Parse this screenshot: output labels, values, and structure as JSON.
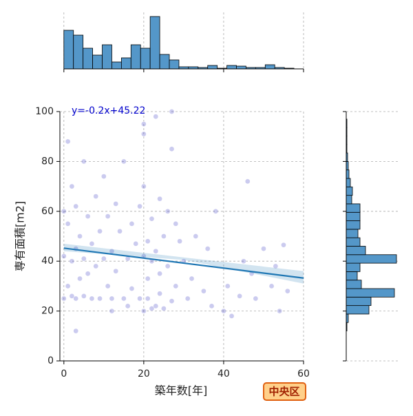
{
  "chart_data": {
    "type": "scatter",
    "x_label": "築年数[年]",
    "y_label": "専有面積[m2]",
    "annotation": "y=-0.2x+45.22",
    "badge": "中央区",
    "xlim": [
      -1,
      60
    ],
    "ylim": [
      0,
      100
    ],
    "xticks": [
      0,
      20,
      40,
      60
    ],
    "yticks": [
      0,
      20,
      40,
      60,
      80,
      100
    ],
    "grid": true,
    "color": "#3030c0",
    "x": [
      0,
      0,
      0,
      1,
      1,
      1,
      2,
      2,
      2,
      3,
      3,
      3,
      4,
      4,
      5,
      5,
      5,
      6,
      6,
      7,
      7,
      8,
      8,
      9,
      9,
      10,
      10,
      11,
      11,
      12,
      12,
      13,
      13,
      14,
      15,
      15,
      16,
      17,
      17,
      18,
      19,
      19,
      20,
      20,
      20,
      20,
      21,
      21,
      21,
      22,
      22,
      22,
      23,
      23,
      23,
      24,
      24,
      24,
      25,
      25,
      26,
      26,
      27,
      27,
      28,
      28,
      29,
      30,
      31,
      32,
      33,
      35,
      36,
      37,
      38,
      40,
      41,
      42,
      44,
      45,
      46,
      47,
      48,
      50,
      52,
      53,
      54,
      55,
      56,
      3,
      12,
      20,
      27,
      16
    ],
    "y": [
      25,
      42,
      60,
      30,
      55,
      88,
      26,
      40,
      70,
      45,
      25,
      62,
      33,
      50,
      26,
      41,
      80,
      58,
      35,
      25,
      47,
      66,
      38,
      25,
      52,
      41,
      74,
      30,
      58,
      25,
      44,
      63,
      36,
      52,
      25,
      80,
      41,
      29,
      55,
      47,
      25,
      62,
      95,
      20,
      42,
      70,
      25,
      48,
      33,
      21,
      57,
      40,
      22,
      98,
      44,
      27,
      65,
      35,
      21,
      50,
      38,
      60,
      24,
      85,
      30,
      55,
      48,
      40,
      25,
      33,
      50,
      28,
      45,
      22,
      60,
      20,
      30,
      18,
      26,
      40,
      72,
      35,
      25,
      45,
      30,
      38,
      20,
      46.5,
      28,
      12,
      20,
      91,
      100,
      22
    ],
    "regression": {
      "slope": -0.2,
      "intercept": 45.22,
      "color": "#1f77b4",
      "band": {
        "x": [
          0,
          30,
          60
        ],
        "lower": [
          44,
          40.5,
          31
        ],
        "upper": [
          47,
          41.5,
          36
        ]
      }
    },
    "top_hist": {
      "color": "#5497c9",
      "bins": [
        0,
        2.4,
        4.8,
        7.2,
        9.6,
        12,
        14.4,
        16.8,
        19.2,
        21.6,
        24,
        26.4,
        28.8,
        31.2,
        33.6,
        36,
        38.4,
        40.8,
        43.2,
        45.6,
        48,
        50.4,
        52.8,
        55.2,
        57.6,
        60
      ],
      "counts": [
        56,
        49,
        30,
        20,
        35,
        10,
        16,
        35,
        30,
        76,
        21,
        13,
        3,
        3,
        2,
        5,
        1,
        5,
        4,
        2,
        2,
        6,
        2,
        1,
        0
      ]
    },
    "right_hist": {
      "color": "#5497c9",
      "bins": [
        12,
        15.4,
        18.8,
        22.2,
        25.6,
        29,
        32.4,
        35.8,
        39.2,
        42.6,
        46,
        49.4,
        52.8,
        56.2,
        59.6,
        63,
        66.4,
        69.8,
        73.2,
        76.6,
        80,
        83.4,
        86.8,
        90.2,
        93.6,
        97
      ],
      "counts": [
        1,
        3,
        33,
        36,
        70,
        22,
        16,
        20,
        73,
        28,
        20,
        17,
        20,
        20,
        20,
        8,
        9,
        6,
        4,
        3,
        2,
        1,
        1,
        1,
        1
      ]
    }
  }
}
